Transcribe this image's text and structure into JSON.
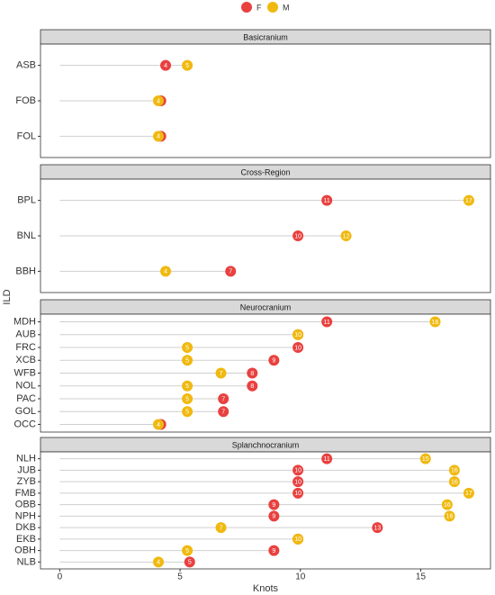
{
  "chart_data": {
    "type": "dot",
    "xlabel": "Knots",
    "ylabel": "ILD",
    "xlim": [
      -0.8,
      17.9
    ],
    "xticks": [
      0,
      5,
      10,
      15
    ],
    "series": [
      {
        "name": "F",
        "color": "#e8413f"
      },
      {
        "name": "M",
        "color": "#f0b90f"
      }
    ],
    "facets": [
      {
        "title": "Basicranium",
        "categories": [
          "ASB",
          "FOB",
          "FOL"
        ],
        "values": [
          [
            4.4,
            4.2,
            4.2
          ],
          [
            5.3,
            4.1,
            4.1
          ]
        ],
        "value_labels": [
          [
            "4",
            "4",
            "4"
          ],
          [
            "5",
            "4",
            "4"
          ]
        ]
      },
      {
        "title": "Cross-Region",
        "categories": [
          "BPL",
          "BNL",
          "BBH"
        ],
        "values": [
          [
            11.1,
            9.9,
            7.1
          ],
          [
            17.0,
            11.9,
            4.4
          ]
        ],
        "value_labels": [
          [
            "11",
            "10",
            "7"
          ],
          [
            "17",
            "12",
            "4"
          ]
        ]
      },
      {
        "title": "Neurocranium",
        "categories": [
          "MDH",
          "AUB",
          "FRC",
          "XCB",
          "WFB",
          "NOL",
          "PAC",
          "GOL",
          "OCC"
        ],
        "values": [
          [
            11.1,
            9.9,
            9.9,
            8.9,
            8.0,
            8.0,
            6.8,
            6.8,
            4.2
          ],
          [
            15.6,
            9.9,
            5.3,
            5.3,
            6.7,
            5.3,
            5.3,
            5.3,
            4.1
          ]
        ],
        "value_labels": [
          [
            "11",
            "10",
            "10",
            "9",
            "8",
            "8",
            "7",
            "7",
            "4"
          ],
          [
            "16",
            "10",
            "5",
            "5",
            "7",
            "5",
            "5",
            "5",
            "4"
          ]
        ]
      },
      {
        "title": "Splanchnocranium",
        "categories": [
          "NLH",
          "JUB",
          "ZYB",
          "FMB",
          "OBB",
          "NPH",
          "DKB",
          "EKB",
          "OBH",
          "NLB"
        ],
        "values": [
          [
            11.1,
            9.9,
            9.9,
            9.9,
            8.9,
            8.9,
            13.2,
            9.9,
            8.9,
            5.4
          ],
          [
            15.2,
            16.4,
            16.4,
            17.0,
            16.1,
            16.2,
            6.7,
            9.9,
            5.3,
            4.1
          ]
        ],
        "value_labels": [
          [
            "11",
            "10",
            "10",
            "10",
            "9",
            "9",
            "13",
            "10",
            "9",
            "5"
          ],
          [
            "15",
            "16",
            "16",
            "17",
            "16",
            "16",
            "7",
            "10",
            "5",
            "4"
          ]
        ]
      }
    ]
  }
}
